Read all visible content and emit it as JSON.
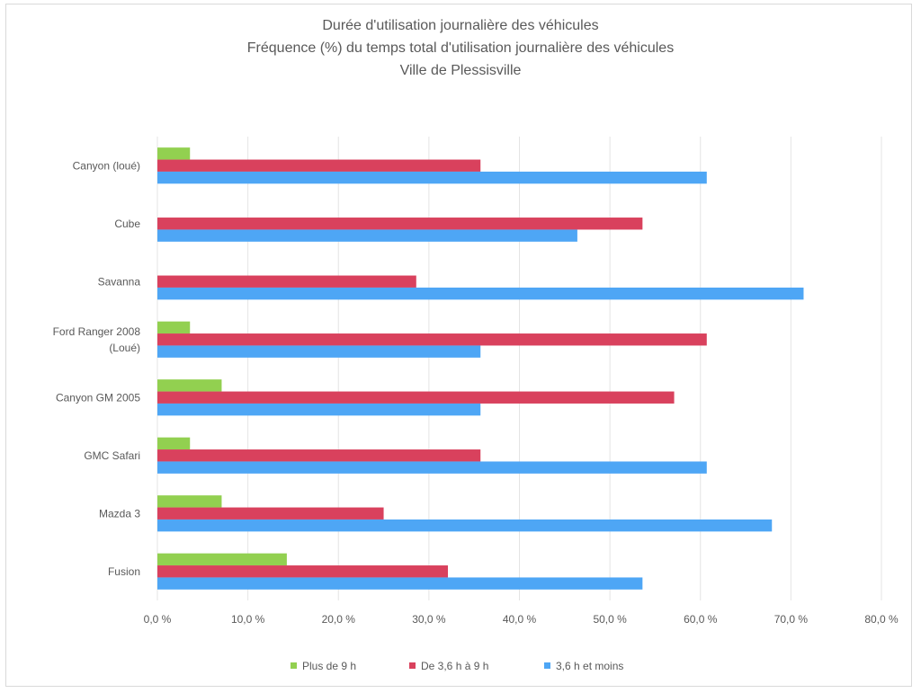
{
  "chart_data": {
    "type": "bar",
    "orientation": "horizontal",
    "title": [
      "Durée d'utilisation journalière des véhicules",
      "Fréquence (%) du temps total d'utilisation journalière des véhicules",
      "Ville de Plessisville"
    ],
    "categories": [
      [
        "Canyon (loué)"
      ],
      [
        "Cube"
      ],
      [
        "Savanna"
      ],
      [
        "Ford Ranger 2008",
        "(Loué)"
      ],
      [
        "Canyon GM 2005"
      ],
      [
        "GMC Safari"
      ],
      [
        "Mazda 3"
      ],
      [
        "Fusion"
      ]
    ],
    "series": [
      {
        "name": "Plus de 9 h",
        "color": "#92d050",
        "values": [
          3.6,
          0,
          0,
          3.6,
          7.1,
          3.6,
          7.1,
          14.3
        ]
      },
      {
        "name": "De 3,6 h à 9 h",
        "color": "#d9415d",
        "values": [
          35.7,
          53.6,
          28.6,
          60.7,
          57.1,
          35.7,
          25.0,
          32.1
        ]
      },
      {
        "name": "3,6 h et moins",
        "color": "#4ea6f5",
        "values": [
          60.7,
          46.4,
          71.4,
          35.7,
          35.7,
          60.7,
          67.9,
          53.6
        ]
      }
    ],
    "xlim": [
      0,
      80
    ],
    "xticks": [
      "0,0 %",
      "10,0 %",
      "20,0 %",
      "30,0 %",
      "40,0 %",
      "50,0 %",
      "60,0 %",
      "70,0 %",
      "80,0 %"
    ],
    "grid": true,
    "legend": "bottom"
  }
}
